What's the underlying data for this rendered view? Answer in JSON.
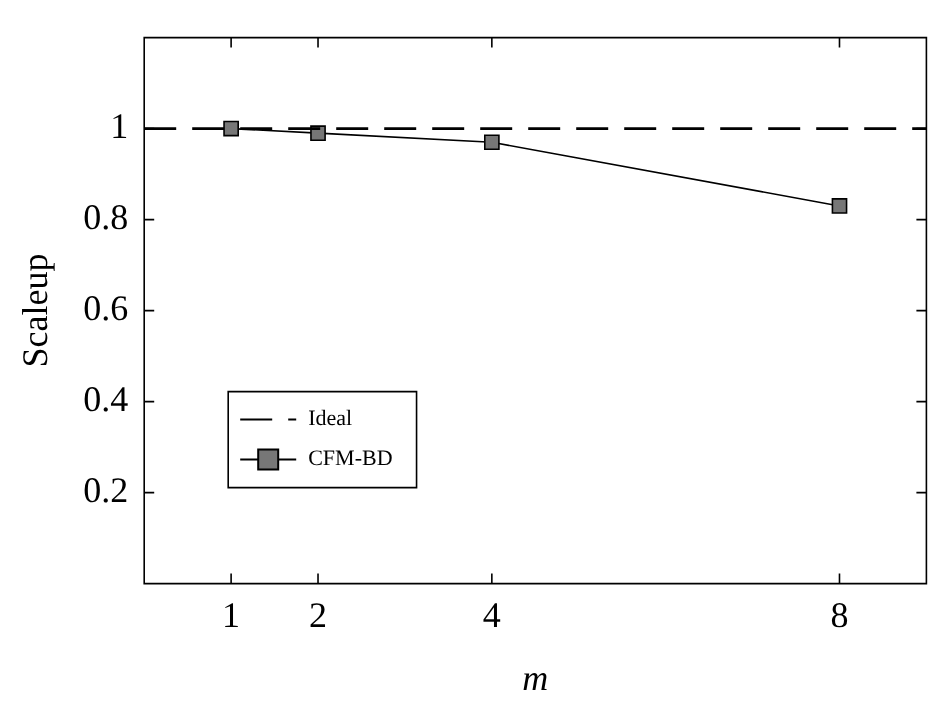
{
  "chart_data": {
    "type": "line",
    "xlabel": "m",
    "ylabel": "Scaleup",
    "xlim": [
      0,
      9
    ],
    "xticks": [
      1,
      2,
      4,
      8
    ],
    "ylim": [
      0,
      1.2
    ],
    "yticks": [
      0.2,
      0.4,
      0.6,
      0.8,
      1
    ],
    "grid": false,
    "legend": "bottom left",
    "series": [
      {
        "name": "Ideal",
        "color": "#000000",
        "x": [
          0,
          9
        ],
        "values": [
          1,
          1
        ],
        "line_style": "dashed",
        "marker": "none"
      },
      {
        "name": "CFM-BD",
        "color": "#000000",
        "x": [
          1,
          2,
          4,
          8
        ],
        "values": [
          1,
          0.99,
          0.97,
          0.83
        ],
        "line_style": "solid",
        "marker": "square"
      }
    ]
  }
}
